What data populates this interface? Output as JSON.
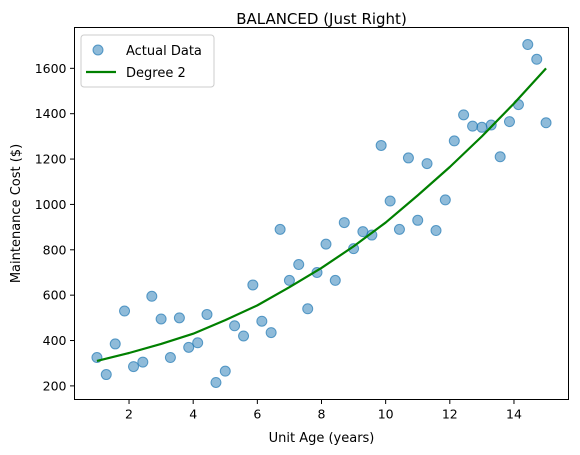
{
  "chart_data": {
    "type": "scatter",
    "title": "BALANCED (Just Right)",
    "xlabel": "Unit Age (years)",
    "ylabel": "Maintenance Cost ($)",
    "xlim": [
      0.3,
      15.7
    ],
    "ylim": [
      140,
      1780
    ],
    "xticks": [
      2,
      4,
      6,
      8,
      10,
      12,
      14
    ],
    "yticks": [
      200,
      400,
      600,
      800,
      1000,
      1200,
      1400,
      1600
    ],
    "grid": false,
    "legend_position": "top-left",
    "series": [
      {
        "name": "Actual Data",
        "kind": "scatter",
        "color": "#1f77b4",
        "points": [
          [
            1.0,
            325
          ],
          [
            1.29,
            250
          ],
          [
            1.57,
            385
          ],
          [
            1.86,
            530
          ],
          [
            2.14,
            285
          ],
          [
            2.43,
            305
          ],
          [
            2.71,
            595
          ],
          [
            3.0,
            495
          ],
          [
            3.29,
            325
          ],
          [
            3.57,
            500
          ],
          [
            3.86,
            370
          ],
          [
            4.14,
            390
          ],
          [
            4.43,
            515
          ],
          [
            4.71,
            215
          ],
          [
            5.0,
            265
          ],
          [
            5.29,
            465
          ],
          [
            5.57,
            420
          ],
          [
            5.86,
            645
          ],
          [
            6.14,
            485
          ],
          [
            6.43,
            435
          ],
          [
            6.71,
            890
          ],
          [
            7.0,
            665
          ],
          [
            7.29,
            735
          ],
          [
            7.57,
            540
          ],
          [
            7.86,
            700
          ],
          [
            8.14,
            825
          ],
          [
            8.43,
            665
          ],
          [
            8.71,
            920
          ],
          [
            9.0,
            805
          ],
          [
            9.29,
            880
          ],
          [
            9.57,
            865
          ],
          [
            9.86,
            1260
          ],
          [
            10.14,
            1015
          ],
          [
            10.43,
            890
          ],
          [
            10.71,
            1205
          ],
          [
            11.0,
            930
          ],
          [
            11.29,
            1180
          ],
          [
            11.57,
            885
          ],
          [
            11.86,
            1020
          ],
          [
            12.14,
            1280
          ],
          [
            12.43,
            1395
          ],
          [
            12.71,
            1345
          ],
          [
            13.0,
            1340
          ],
          [
            13.29,
            1350
          ],
          [
            13.57,
            1210
          ],
          [
            13.86,
            1365
          ],
          [
            14.14,
            1440
          ],
          [
            14.43,
            1705
          ],
          [
            14.71,
            1640
          ],
          [
            15.0,
            1360
          ]
        ]
      },
      {
        "name": "Degree 2",
        "kind": "line",
        "color": "#008000",
        "x": [
          1,
          2,
          3,
          4,
          5,
          6,
          7,
          8,
          9,
          10,
          11,
          12,
          13,
          14,
          15
        ],
        "y": [
          310,
          345,
          385,
          430,
          490,
          555,
          635,
          720,
          815,
          920,
          1040,
          1165,
          1300,
          1445,
          1600
        ]
      }
    ]
  }
}
